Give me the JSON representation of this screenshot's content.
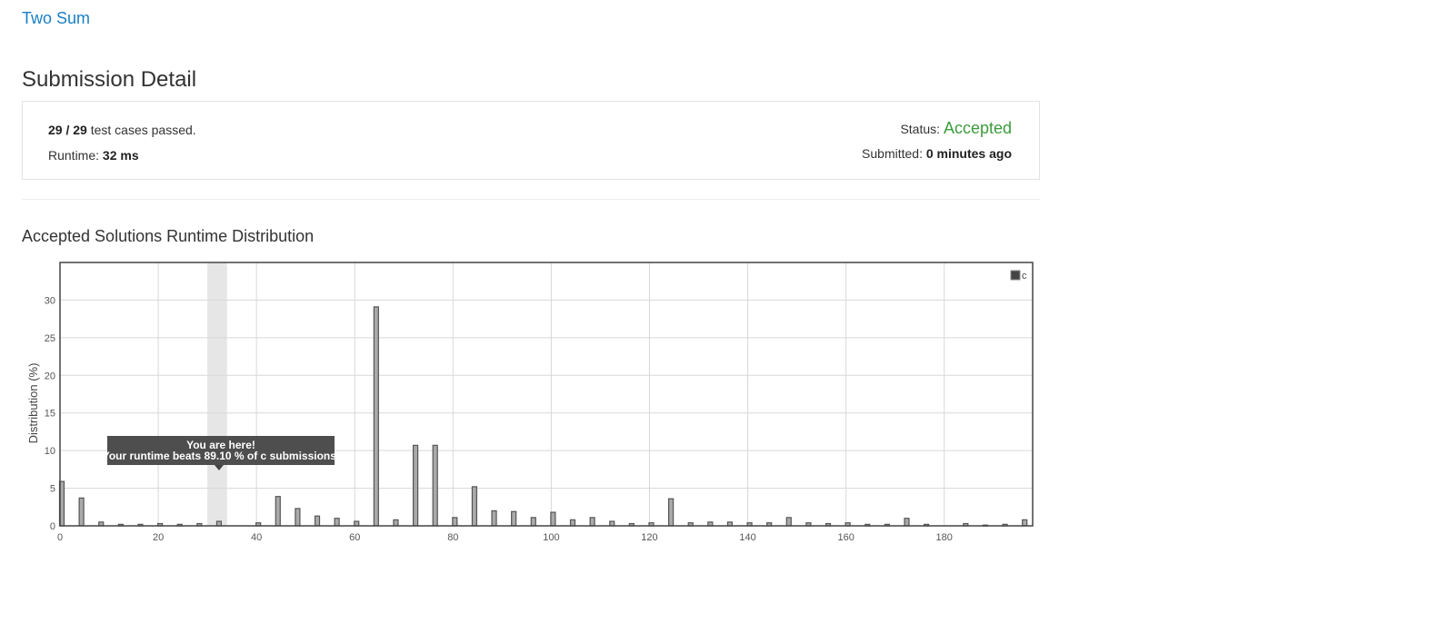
{
  "problem": {
    "title": "Two Sum"
  },
  "submission": {
    "heading": "Submission Detail",
    "passed": "29",
    "slash": "/",
    "total": "29",
    "passed_suffix": "test cases passed.",
    "runtime_label": "Runtime:",
    "runtime_value": "32 ms",
    "status_label": "Status:",
    "status_value": "Accepted",
    "submitted_label": "Submitted:",
    "submitted_value": "0 minutes ago"
  },
  "chart_heading": "Accepted Solutions Runtime Distribution",
  "tooltip": {
    "line1": "You are here!",
    "line2": "Your runtime beats 89.10 % of c submissions."
  },
  "colors": {
    "link": "#1a7fc4",
    "accepted": "#3c9c3c",
    "bar_fill": "#aaaaaa",
    "bar_stroke": "#555555",
    "tooltip_bg": "#444444"
  },
  "chart_data": {
    "type": "bar",
    "title": "",
    "xlabel": "",
    "ylabel": "Distribution (%)",
    "xlim": [
      0,
      198
    ],
    "ylim": [
      0,
      35
    ],
    "xticks": [
      0,
      20,
      40,
      60,
      80,
      100,
      120,
      140,
      160,
      180
    ],
    "yticks": [
      0,
      5,
      10,
      15,
      20,
      25,
      30
    ],
    "grid": true,
    "legend": {
      "position": "top-right",
      "entries": [
        "c"
      ]
    },
    "highlight_x": 32,
    "series": [
      {
        "name": "c",
        "x": [
          0,
          4,
          8,
          12,
          16,
          20,
          24,
          28,
          32,
          40,
          44,
          48,
          52,
          56,
          60,
          64,
          68,
          72,
          76,
          80,
          84,
          88,
          92,
          96,
          100,
          104,
          108,
          112,
          116,
          120,
          124,
          128,
          132,
          136,
          140,
          144,
          148,
          152,
          156,
          160,
          164,
          168,
          172,
          176,
          184,
          188,
          192,
          196
        ],
        "values": [
          5.9,
          3.7,
          0.5,
          0.2,
          0.2,
          0.3,
          0.2,
          0.3,
          0.6,
          0.4,
          3.9,
          2.3,
          1.3,
          1.0,
          0.6,
          29.1,
          0.8,
          10.7,
          10.7,
          1.1,
          5.2,
          2.0,
          1.9,
          1.1,
          1.8,
          0.8,
          1.1,
          0.6,
          0.3,
          0.4,
          3.6,
          0.4,
          0.5,
          0.5,
          0.4,
          0.4,
          1.1,
          0.4,
          0.3,
          0.4,
          0.2,
          0.2,
          1.0,
          0.2,
          0.3,
          0.1,
          0.2,
          0.8
        ]
      }
    ]
  }
}
